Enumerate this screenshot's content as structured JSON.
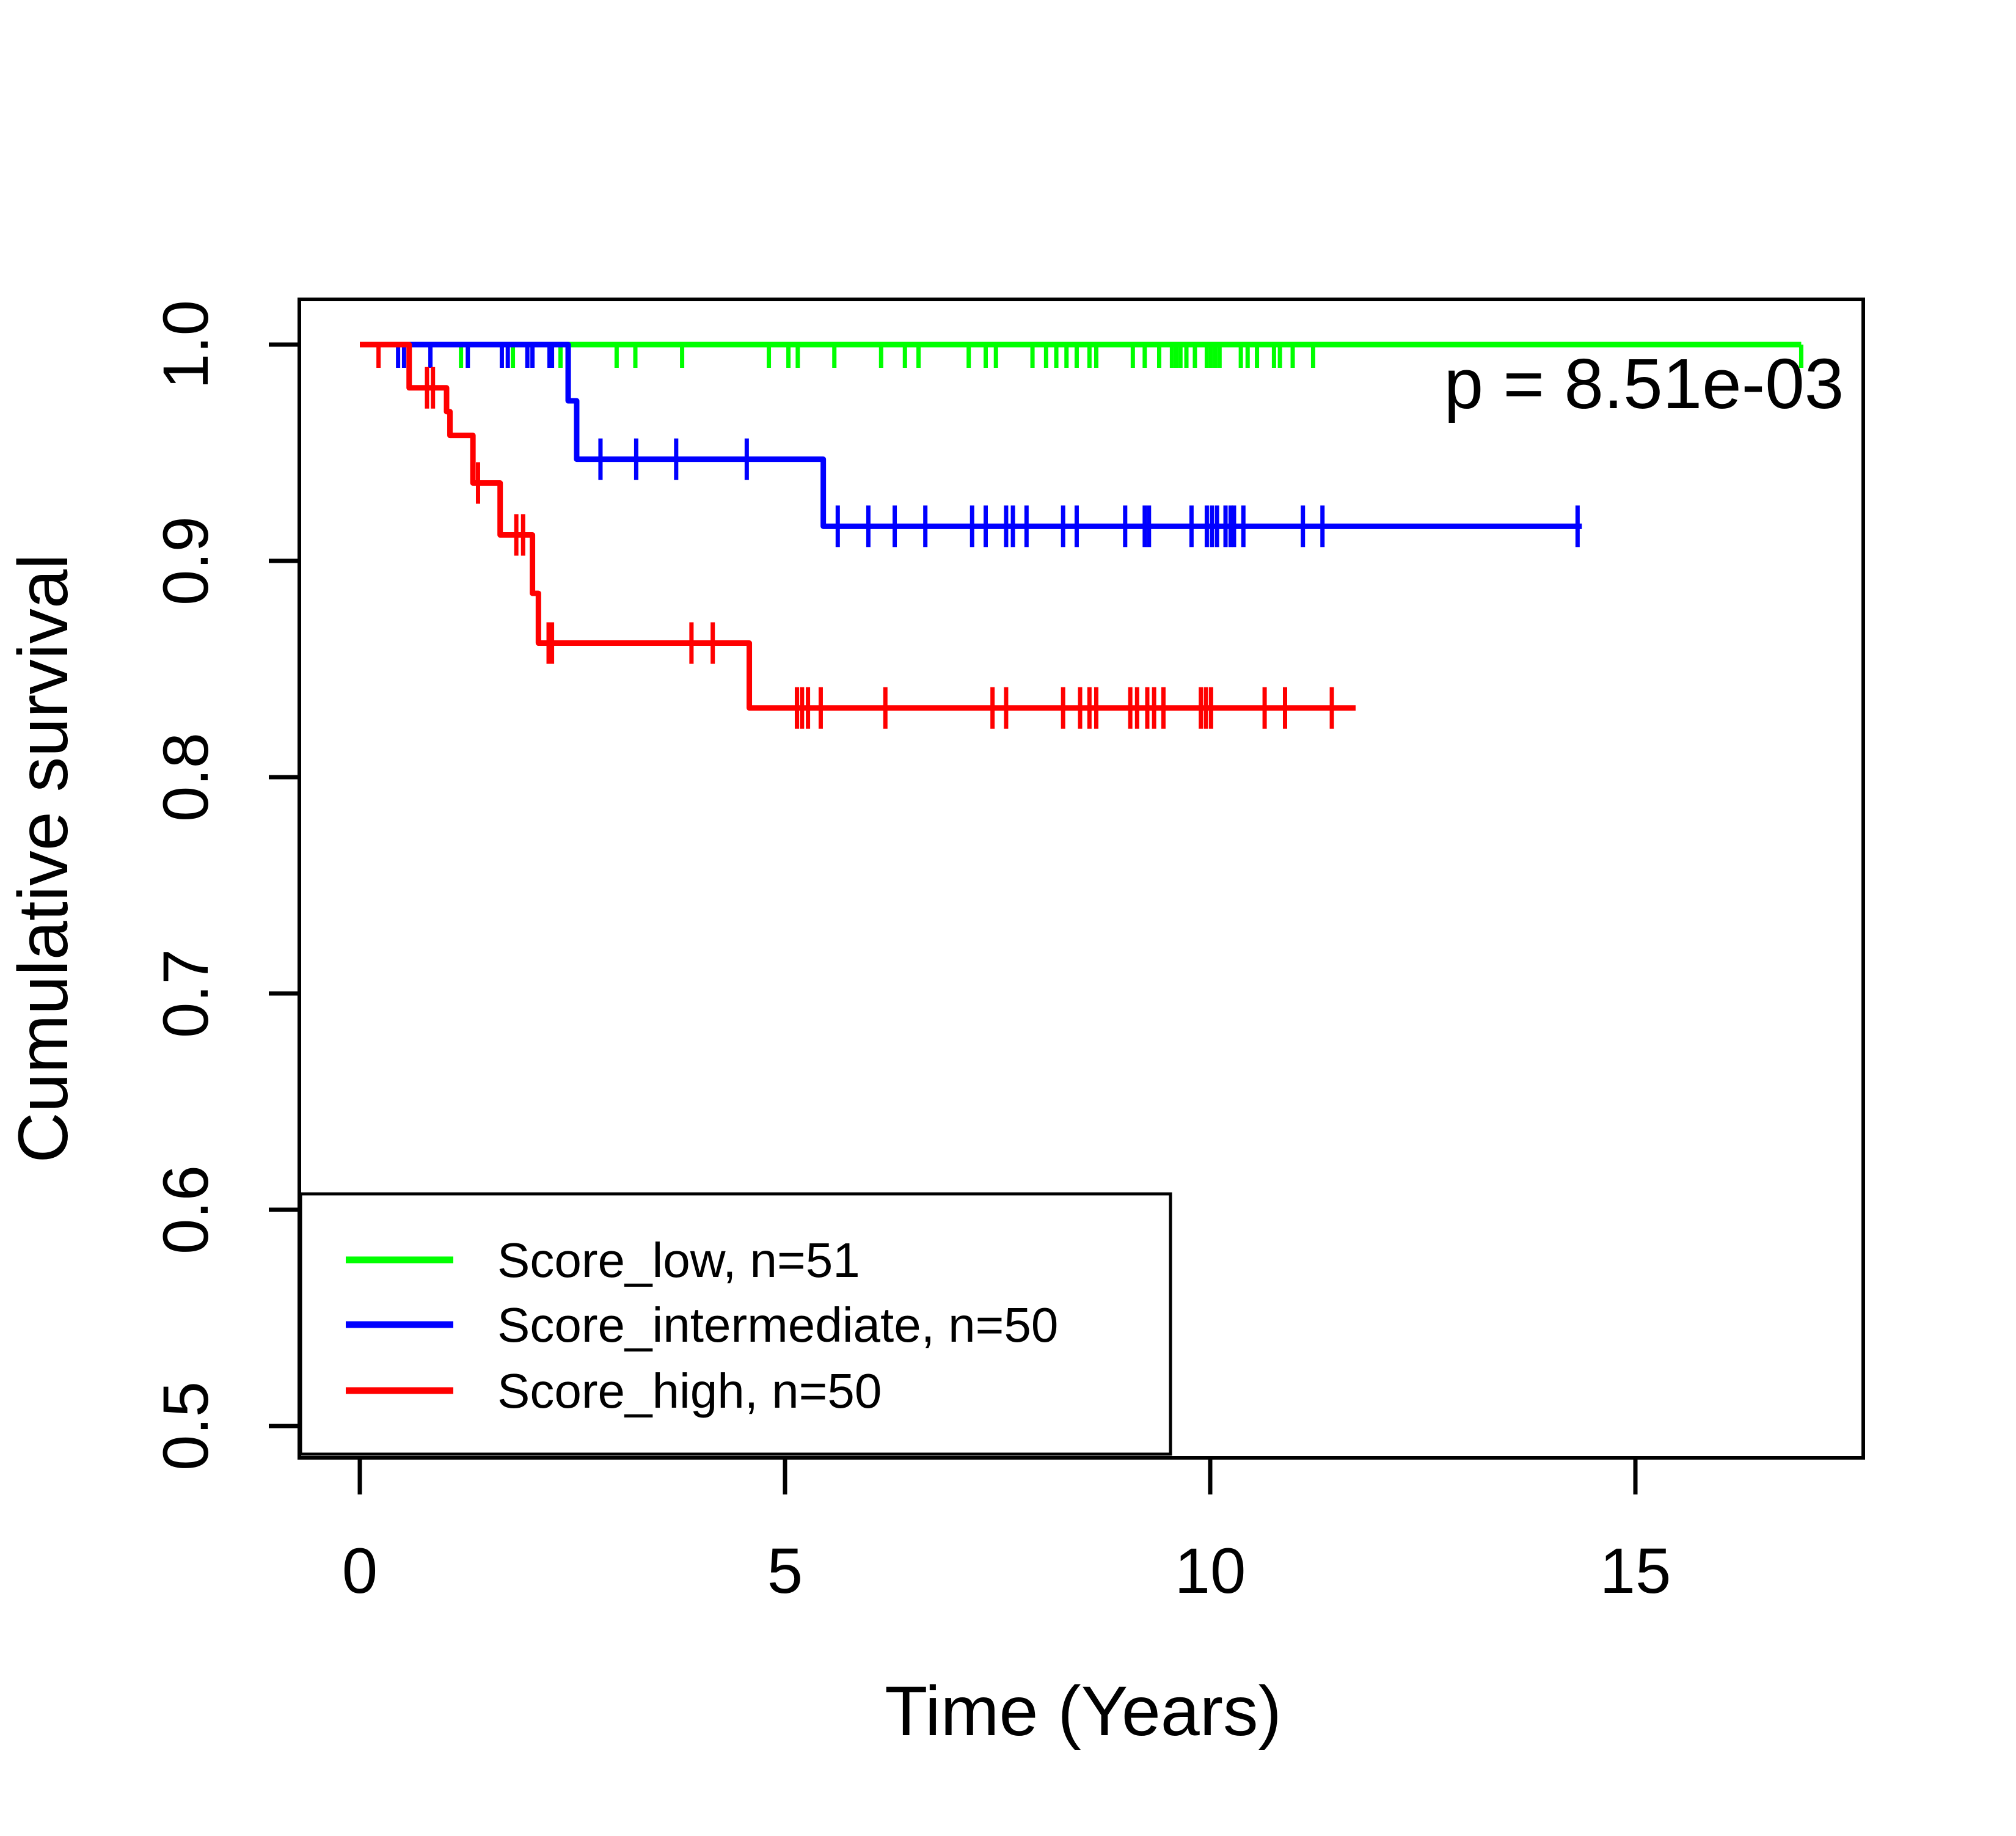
{
  "chart_data": {
    "type": "line",
    "subtype": "kaplan-meier-step",
    "title": "",
    "xlabel": "Time (Years)",
    "ylabel": "Cumulative survival",
    "xlim": [
      0,
      17.7
    ],
    "ylim": [
      0.485,
      1.02
    ],
    "grid": false,
    "xticks": {
      "values": [
        0,
        5,
        10,
        15
      ],
      "labels": [
        "0",
        "5",
        "10",
        "15"
      ]
    },
    "yticks": {
      "values": [
        1.0,
        0.9,
        0.8,
        0.7,
        0.6,
        0.5
      ],
      "labels": [
        "1.0",
        "0.9",
        "0.8",
        "0.7",
        "0.6",
        "0.5"
      ]
    },
    "annotation": {
      "p_label": "p = 8.51e-03"
    },
    "legend": {
      "position": "bottom-left"
    },
    "series": [
      {
        "name": "Score_low, n=51",
        "group": "Score_low",
        "n": 51,
        "color": "#00ff00",
        "steps": [
          [
            0,
            1.0
          ]
        ],
        "end_time": 16.95,
        "censors": [
          [
            1.19,
            1.0
          ],
          [
            1.8,
            1.0
          ],
          [
            2.36,
            1.0
          ],
          [
            3.02,
            1.0
          ],
          [
            3.24,
            1.0
          ],
          [
            3.79,
            1.0
          ],
          [
            4.81,
            1.0
          ],
          [
            5.04,
            1.0
          ],
          [
            5.15,
            1.0
          ],
          [
            5.58,
            1.0
          ],
          [
            6.13,
            1.0
          ],
          [
            6.41,
            1.0
          ],
          [
            6.57,
            1.0
          ],
          [
            7.16,
            1.0
          ],
          [
            7.36,
            1.0
          ],
          [
            7.48,
            1.0
          ],
          [
            7.91,
            1.0
          ],
          [
            8.07,
            1.0
          ],
          [
            8.19,
            1.0
          ],
          [
            8.31,
            1.0
          ],
          [
            8.43,
            1.0
          ],
          [
            8.58,
            1.0
          ],
          [
            8.66,
            1.0
          ],
          [
            9.09,
            1.0
          ],
          [
            9.23,
            1.0
          ],
          [
            9.4,
            1.0
          ],
          [
            9.55,
            1.0
          ],
          [
            9.6,
            1.0
          ],
          [
            9.65,
            1.0
          ],
          [
            9.72,
            1.0
          ],
          [
            9.82,
            1.0
          ],
          [
            9.96,
            1.0
          ],
          [
            10.01,
            1.0
          ],
          [
            10.06,
            1.0
          ],
          [
            10.11,
            1.0
          ],
          [
            10.36,
            1.0
          ],
          [
            10.44,
            1.0
          ],
          [
            10.55,
            1.0
          ],
          [
            10.75,
            1.0
          ],
          [
            10.82,
            1.0
          ],
          [
            10.97,
            1.0
          ],
          [
            11.21,
            1.0
          ],
          [
            16.95,
            1.0
          ]
        ]
      },
      {
        "name": "Score_intermediate, n=50",
        "group": "Score_intermediate",
        "n": 50,
        "color": "#0000ff",
        "steps": [
          [
            0,
            1.0
          ],
          [
            2.45,
            0.974
          ],
          [
            2.55,
            0.947
          ],
          [
            5.45,
            0.916
          ]
        ],
        "end_time": 14.37,
        "censors": [
          [
            0.45,
            1.0
          ],
          [
            0.52,
            1.0
          ],
          [
            0.58,
            1.0
          ],
          [
            0.83,
            1.0
          ],
          [
            1.27,
            1.0
          ],
          [
            1.67,
            1.0
          ],
          [
            1.74,
            1.0
          ],
          [
            1.97,
            1.0
          ],
          [
            2.03,
            1.0
          ],
          [
            2.23,
            1.0
          ],
          [
            2.26,
            1.0
          ],
          [
            2.83,
            0.947
          ],
          [
            3.25,
            0.947
          ],
          [
            3.72,
            0.947
          ],
          [
            4.55,
            0.947
          ],
          [
            5.62,
            0.916
          ],
          [
            5.98,
            0.916
          ],
          [
            6.29,
            0.916
          ],
          [
            6.65,
            0.916
          ],
          [
            7.2,
            0.916
          ],
          [
            7.36,
            0.916
          ],
          [
            7.6,
            0.916
          ],
          [
            7.68,
            0.916
          ],
          [
            7.84,
            0.916
          ],
          [
            8.27,
            0.916
          ],
          [
            8.43,
            0.916
          ],
          [
            9.0,
            0.916
          ],
          [
            9.23,
            0.916
          ],
          [
            9.28,
            0.916
          ],
          [
            9.78,
            0.916
          ],
          [
            9.96,
            0.916
          ],
          [
            10.02,
            0.916
          ],
          [
            10.08,
            0.916
          ],
          [
            10.18,
            0.916
          ],
          [
            10.24,
            0.916
          ],
          [
            10.28,
            0.916
          ],
          [
            10.39,
            0.916
          ],
          [
            11.09,
            0.916
          ],
          [
            11.32,
            0.916
          ],
          [
            14.32,
            0.916
          ]
        ]
      },
      {
        "name": "Score_high, n=50",
        "group": "Score_high",
        "n": 50,
        "color": "#ff0000",
        "steps": [
          [
            0,
            1.0
          ],
          [
            0.58,
            0.98
          ],
          [
            1.02,
            0.969
          ],
          [
            1.06,
            0.958
          ],
          [
            1.33,
            0.936
          ],
          [
            1.65,
            0.912
          ],
          [
            2.03,
            0.885
          ],
          [
            2.1,
            0.862
          ],
          [
            4.58,
            0.832
          ]
        ],
        "end_time": 11.71,
        "censors": [
          [
            0.22,
            1.0
          ],
          [
            0.79,
            0.98
          ],
          [
            0.86,
            0.98
          ],
          [
            1.39,
            0.936
          ],
          [
            1.84,
            0.912
          ],
          [
            1.92,
            0.912
          ],
          [
            2.22,
            0.862
          ],
          [
            2.26,
            0.862
          ],
          [
            3.9,
            0.862
          ],
          [
            4.15,
            0.862
          ],
          [
            5.14,
            0.832
          ],
          [
            5.2,
            0.832
          ],
          [
            5.27,
            0.832
          ],
          [
            5.42,
            0.832
          ],
          [
            6.18,
            0.832
          ],
          [
            7.44,
            0.832
          ],
          [
            7.6,
            0.832
          ],
          [
            8.27,
            0.832
          ],
          [
            8.47,
            0.832
          ],
          [
            8.58,
            0.832
          ],
          [
            8.66,
            0.832
          ],
          [
            9.06,
            0.832
          ],
          [
            9.14,
            0.832
          ],
          [
            9.26,
            0.832
          ],
          [
            9.34,
            0.832
          ],
          [
            9.45,
            0.832
          ],
          [
            9.89,
            0.832
          ],
          [
            9.95,
            0.832
          ],
          [
            10.01,
            0.832
          ],
          [
            10.64,
            0.832
          ],
          [
            10.88,
            0.832
          ],
          [
            11.43,
            0.832
          ]
        ]
      }
    ]
  }
}
